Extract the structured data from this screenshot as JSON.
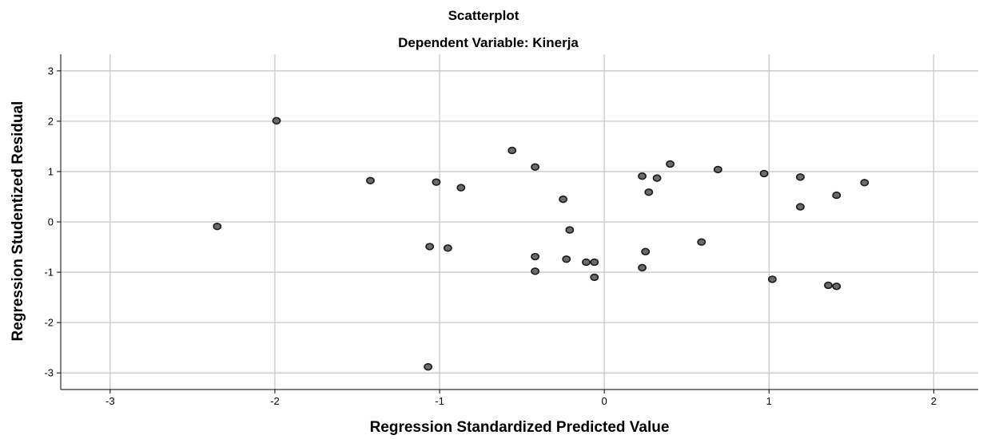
{
  "chart_data": {
    "type": "scatter",
    "title": "Scatterplot",
    "subtitle": "Dependent Variable: Kinerja",
    "xlabel": "Regression Standardized Predicted Value",
    "ylabel": "Regression Studentized Residual",
    "xlim": [
      -3.3,
      2.27
    ],
    "ylim": [
      -3.33,
      3.33
    ],
    "x_ticks": [
      -3,
      -2,
      -1,
      0,
      1,
      2
    ],
    "y_ticks": [
      -3,
      -2,
      -1,
      0,
      1,
      2,
      3
    ],
    "x_tick_labels": [
      "-3",
      "-2",
      "-1",
      "0",
      "1",
      "2"
    ],
    "y_tick_labels": [
      "-3",
      "-2",
      "-1",
      "0",
      "1",
      "2",
      "3"
    ],
    "grid": true,
    "point_color": "#6b6b6b",
    "series": [
      {
        "x": [
          -2.35,
          -1.99,
          -1.42,
          -1.06,
          -1.07,
          -1.02,
          -0.95,
          -0.87,
          -0.56,
          -0.42,
          -0.42,
          -0.42,
          -0.25,
          -0.23,
          -0.21,
          -0.11,
          -0.06,
          -0.06,
          0.23,
          0.23,
          0.25,
          0.27,
          0.32,
          0.4,
          0.59,
          0.69,
          0.97,
          1.02,
          1.19,
          1.19,
          1.36,
          1.41,
          1.41,
          1.58
        ],
        "y": [
          -0.09,
          2.01,
          0.82,
          -0.49,
          -2.88,
          0.79,
          -0.52,
          0.68,
          1.42,
          1.09,
          -0.69,
          -0.98,
          0.45,
          -0.74,
          -0.16,
          -0.8,
          -0.8,
          -1.1,
          0.91,
          -0.91,
          -0.59,
          0.59,
          0.87,
          1.15,
          -0.4,
          1.04,
          0.96,
          -1.14,
          0.89,
          0.3,
          -1.26,
          0.53,
          -1.28,
          0.78
        ]
      }
    ]
  }
}
